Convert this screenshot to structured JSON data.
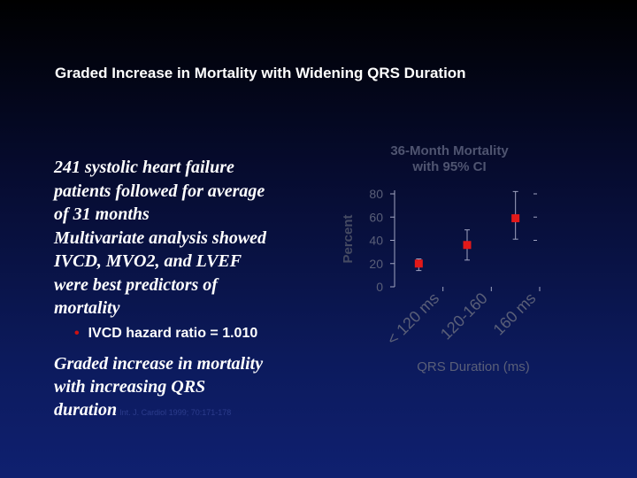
{
  "slide": {
    "title": "Graded Increase in Mortality with Widening QRS Duration",
    "body_lines": [
      "241 systolic heart failure",
      "patients followed for average",
      "of 31 months",
      "Multivariate analysis showed",
      "IVCD, MVO2, and LVEF",
      "were best predictors of",
      "mortality"
    ],
    "bullet": "IVCD hazard ratio = 1.010",
    "conclusion_lines": [
      "Graded increase in mortality",
      "with increasing QRS",
      "duration"
    ],
    "citation": "Int. J. Cardiol 1999; 70:171-178"
  },
  "chart_data": {
    "type": "scatter",
    "title_lines": [
      "36-Month Mortality",
      "with 95% CI"
    ],
    "ylabel": "Percent",
    "xlabel": "QRS Duration (ms)",
    "ylim": [
      0,
      80
    ],
    "yticks": [
      0,
      20,
      40,
      60,
      80
    ],
    "categories": [
      "< 120 ms",
      "120-160",
      "160 ms"
    ],
    "values": [
      20,
      36,
      59
    ],
    "ci_lower": [
      14,
      23,
      41
    ],
    "ci_upper": [
      24,
      49,
      82
    ],
    "colors": {
      "marker": "#e31919",
      "axis": "#a0a4c0",
      "text": "#5a5f78",
      "title": "#4f5470",
      "ylabel": "#454a62"
    }
  }
}
